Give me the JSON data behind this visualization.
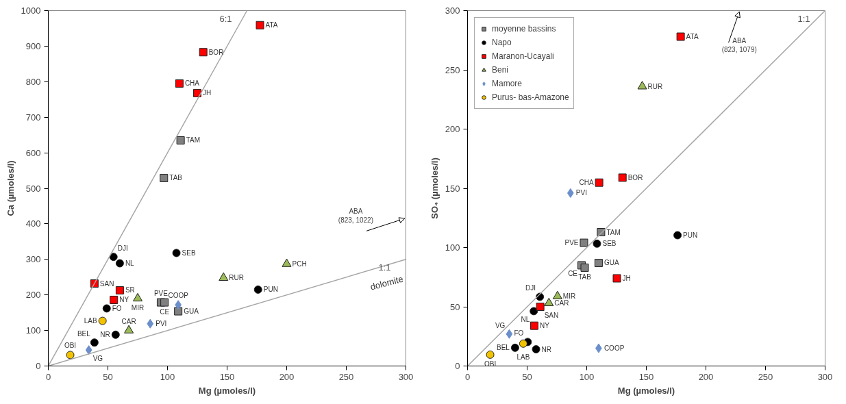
{
  "chart_data": [
    {
      "type": "scatter",
      "xlabel": "Mg (µmoles/l)",
      "ylabel": "Ca (µmoles/l)",
      "xlim": [
        0,
        300
      ],
      "ylim": [
        0,
        1000
      ],
      "xticks": [
        0,
        50,
        100,
        150,
        200,
        250,
        300
      ],
      "yticks": [
        0,
        100,
        200,
        300,
        400,
        500,
        600,
        700,
        800,
        900,
        1000
      ],
      "grid": false,
      "legend": false,
      "series": [
        {
          "marker": "square",
          "color": "#808080",
          "x": [
            111,
            97,
            94.5,
            97.5,
            109
          ],
          "values": [
            635,
            529,
            179,
            179,
            154
          ]
        },
        {
          "marker": "circle",
          "color": "#000000",
          "x": [
            54.7,
            60,
            107.5,
            49,
            56.5,
            38.7,
            176
          ],
          "values": [
            307,
            289,
            318,
            162,
            88,
            66,
            215
          ]
        },
        {
          "marker": "square",
          "color": "#ff0000",
          "x": [
            177.6,
            130,
            110,
            125,
            38.7,
            60,
            55
          ],
          "values": [
            959,
            883,
            795,
            768,
            232,
            213,
            186
          ]
        },
        {
          "marker": "triangle",
          "color": "#9bbb59",
          "x": [
            75,
            67.6,
            147,
            200
          ],
          "values": [
            190,
            100,
            248,
            287
          ]
        },
        {
          "marker": "diamond",
          "color": "#6b8fcb",
          "x": [
            109,
            85.5,
            34
          ],
          "values": [
            172,
            119,
            45
          ]
        },
        {
          "marker": "circle",
          "color": "#f2c200",
          "x": [
            45.5,
            18.4
          ],
          "values": [
            127,
            31
          ]
        },
        {
          "name": "6:1",
          "type": "line",
          "color": "#a6a6a6",
          "x": [
            0,
            166.7
          ],
          "values": [
            0,
            1000
          ]
        },
        {
          "name": "1:1",
          "type": "line",
          "color": "#a6a6a6",
          "x": [
            0,
            300
          ],
          "values": [
            0,
            300
          ]
        }
      ],
      "annotations": [
        "ABA\n(823, 1022)",
        "dolomite",
        {
          "text": "TAM",
          "x": 111,
          "y": 635
        },
        {
          "text": "TAB",
          "x": 97,
          "y": 529
        },
        {
          "text": "PVE",
          "x": 94.5,
          "y": 179
        },
        {
          "text": "CE",
          "x": 97.5,
          "y": 179
        },
        {
          "text": "GUA",
          "x": 109,
          "y": 154
        },
        {
          "text": "DJI",
          "x": 54.7,
          "y": 307
        },
        {
          "text": "NL",
          "x": 60,
          "y": 289
        },
        {
          "text": "SEB",
          "x": 107.5,
          "y": 318
        },
        {
          "text": "FO",
          "x": 49,
          "y": 162
        },
        {
          "text": "NR",
          "x": 56.5,
          "y": 88
        },
        {
          "text": "BEL",
          "x": 38.7,
          "y": 66
        },
        {
          "text": "PUN",
          "x": 176,
          "y": 215
        },
        {
          "text": "ATA",
          "x": 177.6,
          "y": 959
        },
        {
          "text": "BOR",
          "x": 130,
          "y": 883
        },
        {
          "text": "CHA",
          "x": 110,
          "y": 795
        },
        {
          "text": "JH",
          "x": 125,
          "y": 768
        },
        {
          "text": "SAN",
          "x": 38.7,
          "y": 232
        },
        {
          "text": "SR",
          "x": 60,
          "y": 213
        },
        {
          "text": "NY",
          "x": 55,
          "y": 186
        },
        {
          "text": "MIR",
          "x": 75,
          "y": 190
        },
        {
          "text": "CAR",
          "x": 67.6,
          "y": 100
        },
        {
          "text": "RUR",
          "x": 147,
          "y": 248
        },
        {
          "text": "PCH",
          "x": 200,
          "y": 287
        },
        {
          "text": "COOP",
          "x": 109,
          "y": 172
        },
        {
          "text": "PVI",
          "x": 85.5,
          "y": 119
        },
        {
          "text": "VG",
          "x": 34,
          "y": 45
        },
        {
          "text": "LAB",
          "x": 45.5,
          "y": 127
        },
        {
          "text": "OBI",
          "x": 18.4,
          "y": 31
        }
      ]
    },
    {
      "type": "scatter",
      "xlabel": "Mg (µmoles/l)",
      "ylabel": "SO₄ (µmoles/l)",
      "xlim": [
        0,
        300
      ],
      "ylim": [
        0,
        300
      ],
      "xticks": [
        0,
        50,
        100,
        150,
        200,
        250,
        300
      ],
      "yticks": [
        0,
        50,
        100,
        150,
        200,
        250,
        300
      ],
      "grid": false,
      "legend": "top left",
      "series": [
        {
          "name": "moyenne bassins",
          "marker": "square",
          "color": "#808080",
          "x": [
            112,
            97.7,
            95.7,
            98.3,
            110
          ],
          "values": [
            113,
            104,
            85,
            83,
            87
          ]
        },
        {
          "name": "Napo",
          "marker": "circle",
          "color": "#000000",
          "x": [
            60.7,
            55.6,
            108.6,
            50.5,
            57.5,
            39.9,
            176.2
          ],
          "values": [
            58.4,
            46.3,
            103.3,
            20.3,
            14.1,
            15.4,
            110.4
          ]
        },
        {
          "name": "Maranon-Ucayali",
          "marker": "square",
          "color": "#ff0000",
          "x": [
            178.8,
            130,
            110.4,
            125.3,
            61,
            56
          ],
          "values": [
            278,
            159,
            154.8,
            74,
            50,
            34
          ]
        },
        {
          "name": "Beni",
          "marker": "triangle",
          "color": "#9bbb59",
          "x": [
            75.5,
            68.3,
            146.6
          ],
          "values": [
            58.8,
            53,
            236
          ]
        },
        {
          "name": "Mamore",
          "marker": "diamond",
          "color": "#6b8fcb",
          "x": [
            110,
            86.4,
            35
          ],
          "values": [
            15,
            146,
            27
          ]
        },
        {
          "name": "Purus- bas-Amazone",
          "marker": "circle",
          "color": "#f2c200",
          "x": [
            46.8,
            19
          ],
          "values": [
            18.9,
            9.6
          ]
        },
        {
          "name": "1:1",
          "type": "line",
          "color": "#a6a6a6",
          "x": [
            0,
            300
          ],
          "values": [
            0,
            300
          ]
        }
      ],
      "annotations": [
        "ABA\n(823, 1079)",
        {
          "text": "TAM",
          "x": 112,
          "y": 113
        },
        {
          "text": "PVE",
          "x": 97.7,
          "y": 104
        },
        {
          "text": "CE",
          "x": 95.7,
          "y": 85
        },
        {
          "text": "TAB",
          "x": 98.3,
          "y": 83
        },
        {
          "text": "GUA",
          "x": 110,
          "y": 87
        },
        {
          "text": "DJI",
          "x": 60.7,
          "y": 58.4
        },
        {
          "text": "NL",
          "x": 55.6,
          "y": 46.3
        },
        {
          "text": "SEB",
          "x": 108.6,
          "y": 103.3
        },
        {
          "text": "FO",
          "x": 50.5,
          "y": 20.3
        },
        {
          "text": "NR",
          "x": 57.5,
          "y": 14.1
        },
        {
          "text": "BEL",
          "x": 39.9,
          "y": 15.4
        },
        {
          "text": "PUN",
          "x": 176.2,
          "y": 110.4
        },
        {
          "text": "ATA",
          "x": 178.8,
          "y": 278
        },
        {
          "text": "BOR",
          "x": 130,
          "y": 159
        },
        {
          "text": "CHA",
          "x": 110.4,
          "y": 154.8
        },
        {
          "text": "JH",
          "x": 125.3,
          "y": 74
        },
        {
          "text": "SAN",
          "x": 61,
          "y": 50
        },
        {
          "text": "NY",
          "x": 56,
          "y": 34
        },
        {
          "text": "MIR",
          "x": 75.5,
          "y": 58.8
        },
        {
          "text": "CAR",
          "x": 68.3,
          "y": 53
        },
        {
          "text": "RUR",
          "x": 146.6,
          "y": 236
        },
        {
          "text": "COOP",
          "x": 110,
          "y": 15
        },
        {
          "text": "PVI",
          "x": 86.4,
          "y": 146
        },
        {
          "text": "VG",
          "x": 35,
          "y": 27
        },
        {
          "text": "LAB",
          "x": 46.8,
          "y": 18.9
        },
        {
          "text": "OBI",
          "x": 19,
          "y": 9.6
        }
      ]
    }
  ]
}
